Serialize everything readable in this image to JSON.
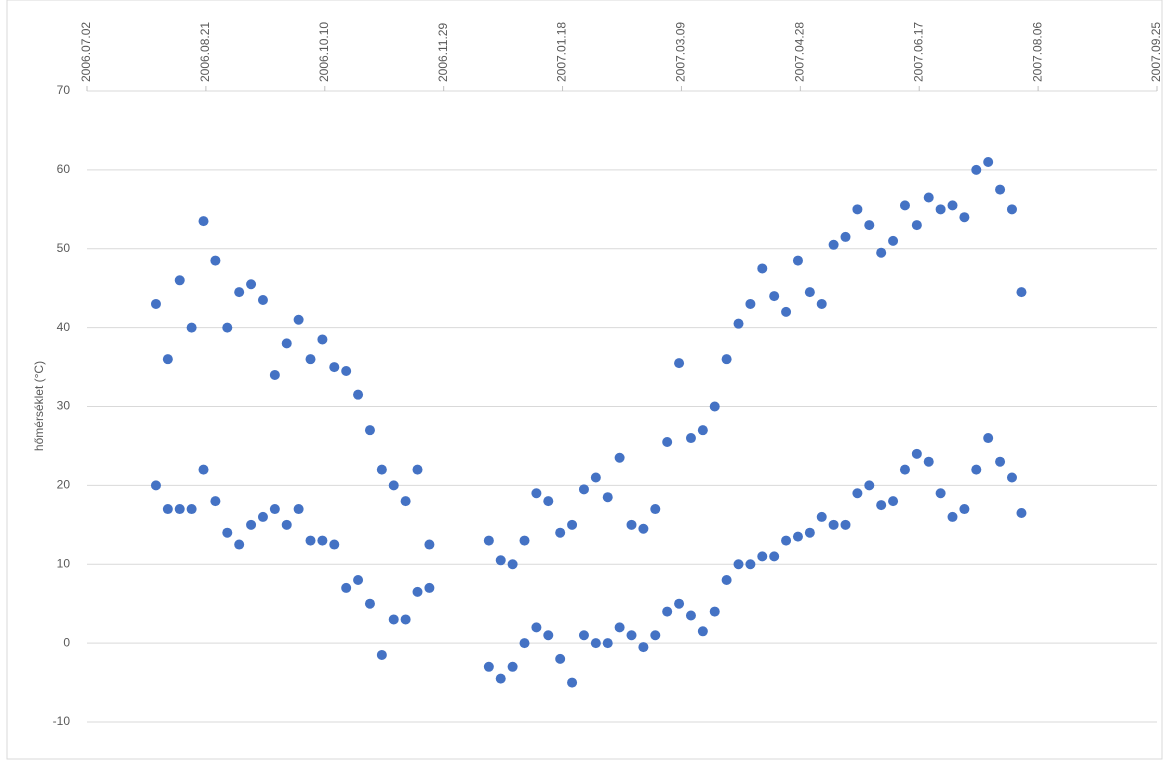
{
  "chart_data": {
    "type": "scatter",
    "y_label": "hőmérséklet (°C)",
    "color": "#4472c4",
    "grid": true,
    "xlim": [
      "2006.07.02",
      "2007.09.25"
    ],
    "xticks": [
      "2006.07.02",
      "2006.08.21",
      "2006.10.10",
      "2006.11.29",
      "2007.01.18",
      "2007.03.09",
      "2007.04.28",
      "2007.06.17",
      "2007.08.06",
      "2007.09.25"
    ],
    "ylim": [
      -10,
      70
    ],
    "yticks": [
      -10,
      0,
      10,
      20,
      30,
      40,
      50,
      60,
      70
    ],
    "x": [
      "2006.07.31",
      "2006.07.31",
      "2006.08.05",
      "2006.08.05",
      "2006.08.10",
      "2006.08.10",
      "2006.08.15",
      "2006.08.15",
      "2006.08.20",
      "2006.08.20",
      "2006.08.25",
      "2006.08.25",
      "2006.08.30",
      "2006.08.30",
      "2006.09.04",
      "2006.09.04",
      "2006.09.09",
      "2006.09.09",
      "2006.09.14",
      "2006.09.14",
      "2006.09.19",
      "2006.09.19",
      "2006.09.24",
      "2006.09.24",
      "2006.09.29",
      "2006.09.29",
      "2006.10.04",
      "2006.10.04",
      "2006.10.09",
      "2006.10.09",
      "2006.10.14",
      "2006.10.14",
      "2006.10.19",
      "2006.10.19",
      "2006.10.24",
      "2006.10.24",
      "2006.10.29",
      "2006.10.29",
      "2006.11.03",
      "2006.11.03",
      "2006.11.08",
      "2006.11.08",
      "2006.11.13",
      "2006.11.13",
      "2006.11.18",
      "2006.11.18",
      "2006.11.23",
      "2006.11.23",
      "2006.12.18",
      "2006.12.18",
      "2006.12.23",
      "2006.12.23",
      "2006.12.28",
      "2006.12.28",
      "2007.01.02",
      "2007.01.02",
      "2007.01.07",
      "2007.01.07",
      "2007.01.12",
      "2007.01.12",
      "2007.01.17",
      "2007.01.17",
      "2007.01.22",
      "2007.01.22",
      "2007.01.27",
      "2007.01.27",
      "2007.02.01",
      "2007.02.01",
      "2007.02.06",
      "2007.02.06",
      "2007.02.11",
      "2007.02.11",
      "2007.02.16",
      "2007.02.16",
      "2007.02.21",
      "2007.02.21",
      "2007.02.26",
      "2007.02.26",
      "2007.03.03",
      "2007.03.03",
      "2007.03.08",
      "2007.03.08",
      "2007.03.13",
      "2007.03.13",
      "2007.03.18",
      "2007.03.18",
      "2007.03.23",
      "2007.03.23",
      "2007.03.28",
      "2007.03.28",
      "2007.04.02",
      "2007.04.02",
      "2007.04.07",
      "2007.04.07",
      "2007.04.12",
      "2007.04.12",
      "2007.04.17",
      "2007.04.17",
      "2007.04.22",
      "2007.04.22",
      "2007.04.27",
      "2007.04.27",
      "2007.05.02",
      "2007.05.02",
      "2007.05.07",
      "2007.05.07",
      "2007.05.12",
      "2007.05.12",
      "2007.05.17",
      "2007.05.17",
      "2007.05.22",
      "2007.05.22",
      "2007.05.27",
      "2007.05.27",
      "2007.06.01",
      "2007.06.01",
      "2007.06.06",
      "2007.06.06",
      "2007.06.11",
      "2007.06.11",
      "2007.06.16",
      "2007.06.16",
      "2007.06.21",
      "2007.06.21",
      "2007.06.26",
      "2007.06.26",
      "2007.07.01",
      "2007.07.01",
      "2007.07.06",
      "2007.07.06",
      "2007.07.11",
      "2007.07.11",
      "2007.07.16",
      "2007.07.16",
      "2007.07.21",
      "2007.07.21",
      "2007.07.26",
      "2007.07.26",
      "2007.07.30",
      "2007.07.30"
    ],
    "values": [
      43,
      20,
      36,
      17,
      46,
      17,
      40,
      17,
      53.5,
      22,
      48.5,
      18,
      40,
      14,
      44.5,
      12.5,
      45.5,
      15,
      43.5,
      16,
      34,
      17,
      38,
      15,
      41,
      17,
      36,
      13,
      38.5,
      13,
      35,
      12.5,
      34.5,
      7,
      31.5,
      8,
      27,
      5,
      22,
      -1.5,
      20,
      3,
      18,
      3,
      22,
      6.5,
      12.5,
      7,
      13,
      -3,
      10.5,
      -4.5,
      10,
      -3,
      13,
      0,
      19,
      2,
      18,
      1,
      14,
      -2,
      15,
      -5,
      19.5,
      1,
      21,
      0,
      18.5,
      0,
      23.5,
      2,
      15,
      1,
      14.5,
      -0.5,
      17,
      1,
      25.5,
      4,
      35.5,
      5,
      26,
      3.5,
      27,
      1.5,
      30,
      4,
      36,
      8,
      40.5,
      10,
      43,
      10,
      47.5,
      11,
      44,
      11,
      42,
      13,
      48.5,
      13.5,
      44.5,
      14,
      43,
      16,
      50.5,
      15,
      51.5,
      15,
      55,
      19,
      53,
      20,
      49.5,
      17.5,
      51,
      18,
      55.5,
      22,
      53,
      24,
      56.5,
      23,
      55,
      19,
      55.5,
      16,
      54,
      17,
      60,
      22,
      61,
      26,
      57.5,
      23,
      55,
      21,
      44.5,
      16.5
    ]
  }
}
